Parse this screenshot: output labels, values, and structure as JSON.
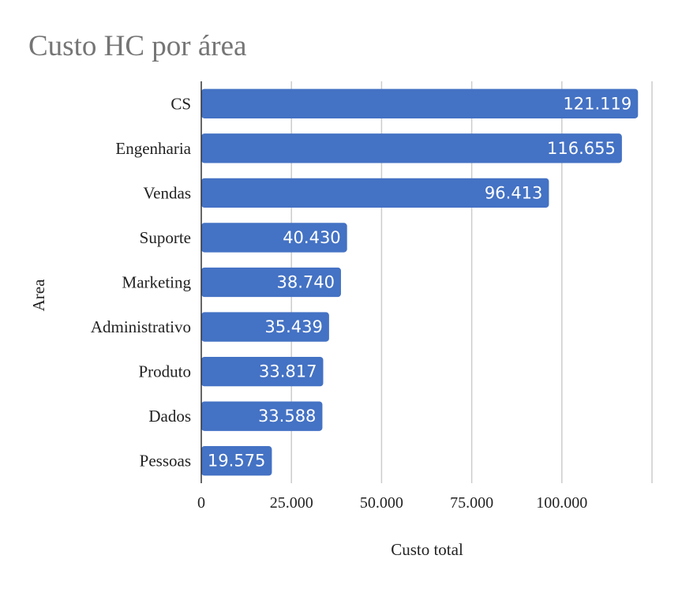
{
  "chart_data": {
    "type": "bar",
    "orientation": "horizontal",
    "title": "Custo HC por área",
    "xlabel": "Custo total",
    "ylabel": "Area",
    "categories": [
      "CS",
      "Engenharia",
      "Vendas",
      "Suporte",
      "Marketing",
      "Administrativo",
      "Produto",
      "Dados",
      "Pessoas"
    ],
    "series": [
      {
        "values": [
          121119,
          116655,
          96413,
          40430,
          38740,
          35439,
          33817,
          33588,
          19575
        ],
        "data_labels": [
          "121.119",
          "116.655",
          "96.413",
          "40.430",
          "38.740",
          "35.439",
          "33.817",
          "33.588",
          "19.575"
        ]
      }
    ],
    "xlim": [
      0,
      125000
    ],
    "x_ticks": [
      0,
      25000,
      50000,
      75000,
      100000
    ],
    "x_tick_labels": [
      "0",
      "25.000",
      "50.000",
      "75.000",
      "100.000"
    ],
    "grid": true,
    "legend": "none",
    "bar_color": "#4472c4",
    "data_label_color": "#ffffff",
    "title_color": "#757575"
  }
}
